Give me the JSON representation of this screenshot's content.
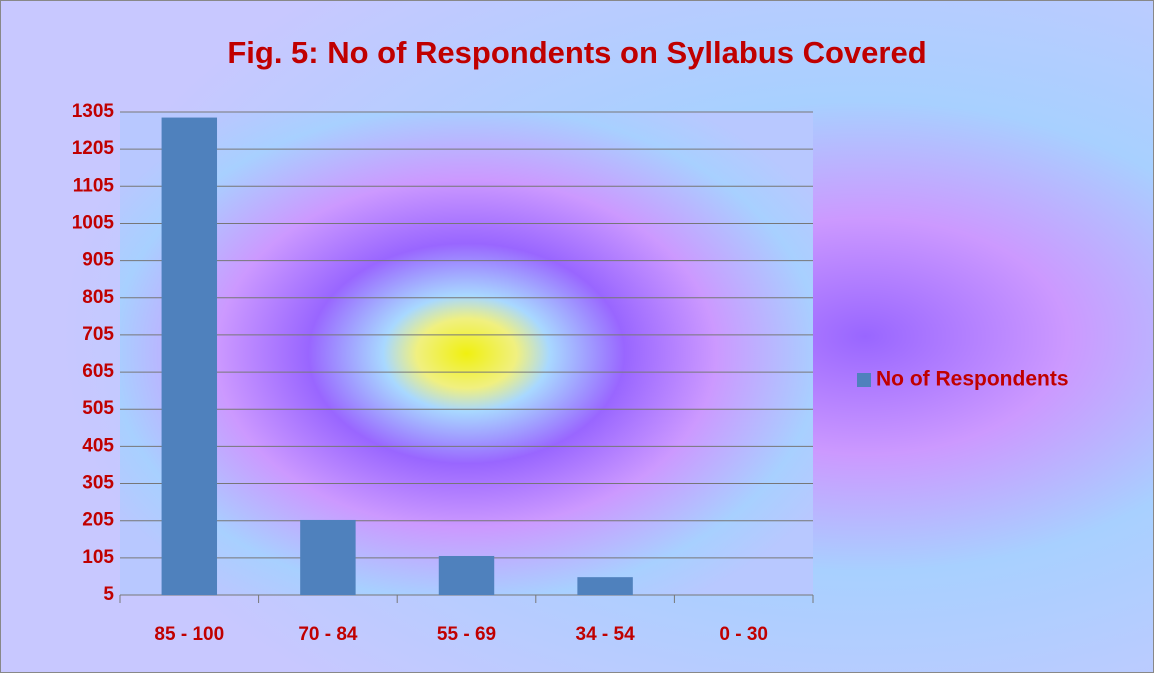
{
  "chart_data": {
    "type": "bar",
    "title": "Fig. 5: No of Respondents on Syllabus Covered",
    "categories": [
      "85 - 100",
      "70 - 84",
      "55 - 69",
      "34 - 54",
      "0 - 30"
    ],
    "series": [
      {
        "name": "No of Respondents",
        "color": "#4f81bd",
        "values": [
          1290,
          207,
          110,
          53,
          5
        ]
      }
    ],
    "ylim": [
      5,
      1305
    ],
    "yticks": [
      5,
      105,
      205,
      305,
      405,
      505,
      605,
      705,
      805,
      905,
      1005,
      1105,
      1205,
      1305
    ],
    "grid": true,
    "legend": "right"
  }
}
